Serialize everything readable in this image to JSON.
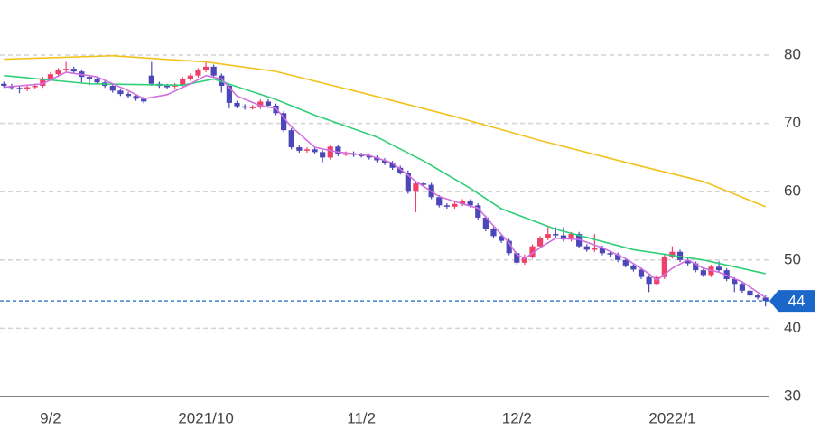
{
  "chart_data": {
    "type": "candlestick",
    "x": [
      0,
      1,
      2,
      3,
      4,
      5,
      6,
      7,
      8,
      9,
      10,
      11,
      12,
      13,
      14,
      15,
      16,
      17,
      18,
      19,
      20,
      21,
      22,
      23,
      24,
      25,
      26,
      27,
      28,
      29,
      30,
      31,
      32,
      33,
      34,
      35,
      36,
      37,
      38,
      39,
      40,
      41,
      42,
      43,
      44,
      45,
      46,
      47,
      48,
      49,
      50,
      51,
      52,
      53,
      54,
      55,
      56,
      57,
      58,
      59,
      60,
      61,
      62,
      63,
      64,
      65,
      66,
      67,
      68,
      69,
      70,
      71,
      72,
      73,
      74,
      75,
      76,
      77,
      78,
      79,
      80,
      81,
      82,
      83,
      84,
      85,
      86,
      87,
      88,
      89,
      90,
      91,
      92,
      93,
      94,
      95,
      96,
      97,
      98
    ],
    "open": [
      75.8,
      75.5,
      75.2,
      75.0,
      75.3,
      75.5,
      76.5,
      77.2,
      77.8,
      78.0,
      77.6,
      76.8,
      76.5,
      76.0,
      75.5,
      74.8,
      74.3,
      74.0,
      73.6,
      77.0,
      75.8,
      75.5,
      75.4,
      75.6,
      76.5,
      77.0,
      77.8,
      78.3,
      77.0,
      75.5,
      73.0,
      72.5,
      72.3,
      72.4,
      73.2,
      72.6,
      71.5,
      69.0,
      66.5,
      66.0,
      66.2,
      65.8,
      65.0,
      66.6,
      65.5,
      65.6,
      65.4,
      65.3,
      65.0,
      64.6,
      64.2,
      63.5,
      62.8,
      60.0,
      61.2,
      61.0,
      59.2,
      58.0,
      57.8,
      58.2,
      58.6,
      58.0,
      56.2,
      54.5,
      53.5,
      52.8,
      51.0,
      49.6,
      50.5,
      52.0,
      53.2,
      53.8,
      53.6,
      53.0,
      53.8,
      52.0,
      51.5,
      51.8,
      51.0,
      50.8,
      50.0,
      49.2,
      48.6,
      47.5,
      46.5,
      47.5,
      50.5,
      51.2,
      50.0,
      49.5,
      48.5,
      47.8,
      49.0,
      48.5,
      47.2,
      46.5,
      45.5,
      44.8,
      44.5
    ],
    "high": [
      76.1,
      75.8,
      75.5,
      75.6,
      75.8,
      76.8,
      77.5,
      78.1,
      79.0,
      78.3,
      77.9,
      77.1,
      76.8,
      76.3,
      75.8,
      75.1,
      74.6,
      74.3,
      73.9,
      79.0,
      76.1,
      75.8,
      75.9,
      76.8,
      77.3,
      78.1,
      79.0,
      78.6,
      77.3,
      75.8,
      73.3,
      72.8,
      72.7,
      73.5,
      73.5,
      72.9,
      71.8,
      69.3,
      66.8,
      66.5,
      66.5,
      66.1,
      66.9,
      66.9,
      65.9,
      65.9,
      65.7,
      65.6,
      65.3,
      64.9,
      64.5,
      63.8,
      63.1,
      61.5,
      61.5,
      61.3,
      59.5,
      58.3,
      58.5,
      58.9,
      58.9,
      58.3,
      56.5,
      54.8,
      53.8,
      53.1,
      51.3,
      50.8,
      52.3,
      53.5,
      54.8,
      54.8,
      54.8,
      54.1,
      54.1,
      52.3,
      53.8,
      52.1,
      51.3,
      51.1,
      50.3,
      49.5,
      48.9,
      47.8,
      47.8,
      50.8,
      52.0,
      51.5,
      50.3,
      49.8,
      48.8,
      49.3,
      49.8,
      48.8,
      47.5,
      46.8,
      45.8,
      45.1,
      44.8
    ],
    "low": [
      75.2,
      74.9,
      74.4,
      74.7,
      75.0,
      75.2,
      76.2,
      76.9,
      77.5,
      77.3,
      76.0,
      75.6,
      75.7,
      75.2,
      74.5,
      74.0,
      73.7,
      73.3,
      72.9,
      75.5,
      75.2,
      75.1,
      75.1,
      75.3,
      76.2,
      76.7,
      77.5,
      76.7,
      74.5,
      72.2,
      72.2,
      72.0,
      72.0,
      72.1,
      72.3,
      71.2,
      68.7,
      66.2,
      65.7,
      65.7,
      65.5,
      64.3,
      64.7,
      65.2,
      65.2,
      65.1,
      65.0,
      64.7,
      64.3,
      63.9,
      63.2,
      62.5,
      59.7,
      57.0,
      60.7,
      58.9,
      57.7,
      57.5,
      57.5,
      57.9,
      57.7,
      55.9,
      54.2,
      53.2,
      52.5,
      50.7,
      49.3,
      49.3,
      50.2,
      51.7,
      52.9,
      53.3,
      52.7,
      52.7,
      51.7,
      51.2,
      51.2,
      50.7,
      50.5,
      49.7,
      48.9,
      48.3,
      47.2,
      45.3,
      46.2,
      47.2,
      50.2,
      49.7,
      49.2,
      48.2,
      47.5,
      47.5,
      48.2,
      46.9,
      45.3,
      45.2,
      44.5,
      44.2,
      43.2
    ],
    "close": [
      75.5,
      75.2,
      75.0,
      75.3,
      75.5,
      76.5,
      77.2,
      77.8,
      78.0,
      77.6,
      76.8,
      76.5,
      76.0,
      75.5,
      74.8,
      74.3,
      74.0,
      73.6,
      73.2,
      75.8,
      75.5,
      75.4,
      75.6,
      76.5,
      77.0,
      77.8,
      78.3,
      77.0,
      75.5,
      73.0,
      72.5,
      72.3,
      72.4,
      73.2,
      72.6,
      71.5,
      69.0,
      66.5,
      66.0,
      66.2,
      65.8,
      65.0,
      66.6,
      65.5,
      65.6,
      65.4,
      65.3,
      65.0,
      64.6,
      64.2,
      63.5,
      62.8,
      60.0,
      61.2,
      61.0,
      59.2,
      58.0,
      57.8,
      58.2,
      58.6,
      58.0,
      56.2,
      54.5,
      53.5,
      52.8,
      51.0,
      49.6,
      50.5,
      52.0,
      53.2,
      53.8,
      53.6,
      53.0,
      53.8,
      52.0,
      51.5,
      51.8,
      51.0,
      50.8,
      50.0,
      49.2,
      48.6,
      47.5,
      46.5,
      47.5,
      50.5,
      51.2,
      50.0,
      49.5,
      48.5,
      47.8,
      49.0,
      48.5,
      47.2,
      46.5,
      45.5,
      44.8,
      44.5,
      44.0
    ],
    "up_color": "#f0406a",
    "down_color": "#4b47b8",
    "series": [
      {
        "color": "#f2c21b",
        "x": [
          0,
          14,
          26,
          35,
          46,
          58,
          69,
          81,
          90,
          98
        ],
        "values": [
          79.4,
          79.9,
          79.0,
          77.6,
          74.5,
          71.0,
          67.5,
          64.0,
          61.5,
          57.8
        ]
      },
      {
        "color": "#2fcf78",
        "x": [
          0,
          11,
          23,
          27,
          35,
          40,
          48,
          54,
          60,
          64,
          71,
          81,
          90,
          98
        ],
        "values": [
          77.0,
          75.8,
          75.6,
          76.5,
          73.5,
          71.2,
          68.0,
          64.5,
          60.5,
          57.5,
          54.5,
          51.5,
          50.0,
          48.0
        ]
      },
      {
        "color": "#d070e0",
        "x": [
          0,
          5,
          8,
          12,
          16,
          18,
          21,
          24,
          26,
          28,
          30,
          33,
          35,
          37,
          40,
          43,
          47,
          50,
          53,
          56,
          59,
          61,
          63,
          65,
          66,
          67,
          69,
          71,
          74,
          77,
          80,
          83,
          84,
          86,
          88,
          90,
          92,
          95,
          98
        ],
        "values": [
          75.3,
          75.8,
          77.5,
          76.8,
          74.8,
          73.6,
          74.2,
          75.8,
          77.0,
          76.5,
          74.0,
          72.6,
          72.2,
          69.5,
          66.5,
          65.8,
          65.3,
          64.2,
          61.5,
          59.3,
          58.2,
          57.6,
          55.0,
          52.5,
          50.8,
          50.2,
          51.8,
          53.2,
          53.0,
          51.8,
          50.2,
          48.0,
          47.0,
          48.8,
          50.0,
          48.8,
          48.2,
          46.8,
          44.5
        ]
      }
    ],
    "current_price": 44,
    "current_color": "#1a66c9",
    "xlim": [
      -0.5,
      98.5
    ],
    "xticks": [
      {
        "value": 6,
        "label": "9/2"
      },
      {
        "value": 26,
        "label": "2021/10"
      },
      {
        "value": 46,
        "label": "11/2"
      },
      {
        "value": 66,
        "label": "12/2"
      },
      {
        "value": 86,
        "label": "2022/1"
      }
    ],
    "ylim": [
      30,
      85
    ],
    "yticks": [
      30,
      40,
      50,
      60,
      70,
      80
    ],
    "grid": true
  }
}
